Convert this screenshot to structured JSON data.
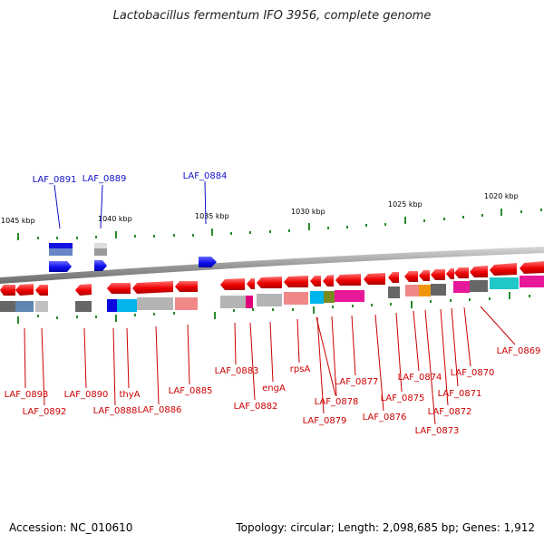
{
  "title": "Lactobacillus fermentum IFO 3956, complete genome",
  "footer": {
    "accession": "Accession: NC_010610",
    "topology": "Topology: circular; Length: 2,098,685 bp; Genes: 1,912"
  },
  "colors": {
    "forward_gene": "#1010e8",
    "reverse_gene": "#e81010",
    "forward_label": "#1010cc",
    "reverse_label": "#cc0000",
    "backbone": "#9a9a9a",
    "tick": "#2a8a2a"
  },
  "ruler": [
    "1045 kbp",
    "1040 kbp",
    "1035 kbp",
    "1030 kbp",
    "1025 kbp",
    "1020 kbp"
  ],
  "forward_labels": [
    "LAF_0891",
    "LAF_0889",
    "LAF_0884"
  ],
  "reverse_labels": [
    "LAF_0893",
    "LAF_0892",
    "LAF_0890",
    "LAF_0888",
    "thyA",
    "LAF_0886",
    "LAF_0885",
    "LAF_0883",
    "LAF_0882",
    "engA",
    "rpsA",
    "LAF_0879",
    "LAF_0878",
    "LAF_0877",
    "LAF_0876",
    "LAF_0875",
    "LAF_0874",
    "LAF_0873",
    "LAF_0872",
    "LAF_0871",
    "LAF_0870",
    "LAF_0869"
  ]
}
